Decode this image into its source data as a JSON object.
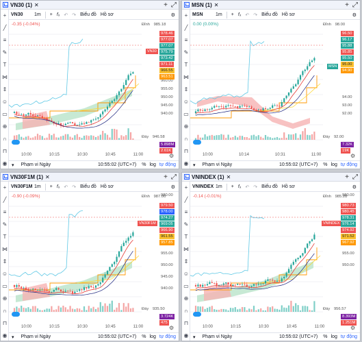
{
  "colors": {
    "up": "#26a69a",
    "down": "#ef5350",
    "accent": "#2962ff"
  },
  "icons": [
    "chart-icon",
    "close-icon",
    "plus-icon",
    "maximize-icon",
    "crosshair-icon",
    "trend-line-icon",
    "fib-icon",
    "brush-icon",
    "text-icon",
    "pattern-icon",
    "measure-icon",
    "emoji-icon",
    "ruler-icon",
    "zoom-icon",
    "magnet-icon",
    "lock-icon",
    "eye-icon"
  ],
  "toolbar": {
    "interval": "1m",
    "chart_label": "Biểu đồ",
    "profile_label": "Hồ sơ"
  },
  "bottom": {
    "range_label": "Phạm vi Ngày",
    "percent": "%",
    "log": "log",
    "auto": "tự động"
  },
  "panels": [
    {
      "title": "VN30 (1)",
      "symbol": "VN30",
      "change": "-0.35 (-0.04%)",
      "clock": "10:55:02 (UTC+7)",
      "time_labels": [
        "10:00",
        "10:15",
        "10:30",
        "10:45",
        "11:00"
      ],
      "axis_labels": [
        "960.00",
        "955.00",
        "950.00",
        "945.00",
        "940.00"
      ],
      "high": {
        "label": "Đỉnh",
        "value": "985.18"
      },
      "low": {
        "label": "Đáy",
        "value": "946.58"
      },
      "sym_tag": "VN30",
      "tags": [
        "978.46",
        "977.07",
        "977.07",
        "975.79",
        "973.42",
        "971.11",
        "966.55",
        "963.51"
      ],
      "vol_tags": [
        "5.898M",
        "2.61K"
      ]
    },
    {
      "title": "MSN (1)",
      "symbol": "MSN",
      "change": "0.00 (0.00%)",
      "clock": "10:55:02 (UTC+7)",
      "time_labels": [
        "10:00",
        "10:14",
        "10:31",
        "11:00"
      ],
      "axis_labels": [
        "94.00",
        "93.00",
        "92.00"
      ],
      "high": {
        "label": "Đỉnh",
        "value": "98.00"
      },
      "low": {
        "label": "Đáy",
        "value": "92.00"
      },
      "sym_tag": "MSN",
      "tags": [
        "96.50",
        "96.17",
        "95.88",
        "95.85",
        "95.50",
        "95.00",
        "94.90"
      ],
      "vol_tags": [
        "7.32K",
        "19K"
      ]
    },
    {
      "title": "VN30F1M (1)",
      "symbol": "VN30F1M",
      "change": "-0.90 (-0.09%)",
      "clock": "10:55:02 (UTC+7)",
      "time_labels": [
        "10:00",
        "10:15",
        "10:30",
        "10:45",
        "11:00"
      ],
      "axis_labels": [
        "980.00",
        "975.00",
        "970.00",
        "965.00",
        "960.00",
        "955.00",
        "950.00",
        "945.00",
        "940.00"
      ],
      "high": {
        "label": "Đỉnh",
        "value": "987.00"
      },
      "low": {
        "label": "Đáy",
        "value": "935.50"
      },
      "sym_tag": "VN30F1M",
      "tags": [
        "979.50",
        "978.00",
        "974.27",
        "969.05",
        "966.90",
        "961.55",
        "957.85"
      ],
      "vol_tags": [
        "3.724K",
        "475"
      ]
    },
    {
      "title": "VNINDEX (1)",
      "symbol": "VNINDEX",
      "change": "-0.14 (-0.01%)",
      "clock": "10:55:02 (UTC+7)",
      "time_labels": [
        "10:00",
        "10:15",
        "10:30",
        "10:45",
        "11:00"
      ],
      "axis_labels": [
        "980.00",
        "975.00",
        "970.00",
        "965.00",
        "960.00",
        "955.00",
        "950.00"
      ],
      "high": {
        "label": "Đỉnh",
        "value": "985.28"
      },
      "low": {
        "label": "Đáy",
        "value": "956.57"
      },
      "sym_tag": "VNINDEX",
      "tags": [
        "980.73",
        "980.45",
        "978.31",
        "976.14",
        "974.92",
        "971.52",
        "967.92"
      ],
      "vol_tags": [
        "8.393M",
        "1.251M"
      ]
    }
  ]
}
